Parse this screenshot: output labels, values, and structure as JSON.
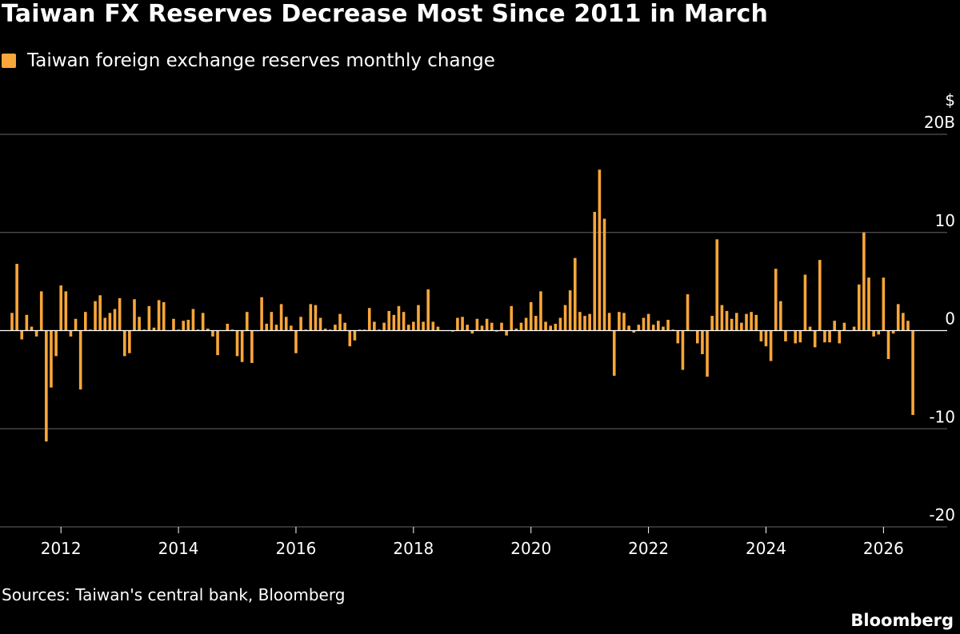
{
  "title": "Taiwan FX Reserves Decrease Most Since 2011 in March",
  "legend": {
    "label": "Taiwan foreign exchange reserves monthly change",
    "color": "#F9A63A"
  },
  "source": "Sources: Taiwan's central bank, Bloomberg",
  "brand": "Bloomberg",
  "colors": {
    "background": "#000000",
    "bar": "#F9A63A",
    "grid": "#666666",
    "zero": "#ffffff",
    "text": "#ffffff"
  },
  "chart_data": {
    "type": "bar",
    "title": "Taiwan FX Reserves Decrease Most Since 2011 in March",
    "series": [
      {
        "name": "Taiwan foreign exchange reserves monthly change",
        "color": "#F9A63A"
      }
    ],
    "unit": "$ B",
    "y_unit_label": "$",
    "start_year": 2011,
    "start_month": 3,
    "values": [
      1.8,
      6.8,
      -0.9,
      1.6,
      0.4,
      -0.6,
      4.0,
      -11.3,
      -5.8,
      -2.6,
      4.6,
      4.0,
      -0.6,
      1.2,
      -6.0,
      1.9,
      0.1,
      3.0,
      3.6,
      1.3,
      1.8,
      2.2,
      3.3,
      -2.6,
      -2.3,
      3.2,
      1.4,
      0.1,
      2.5,
      0.3,
      3.1,
      2.9,
      0.0,
      1.2,
      0.1,
      1.0,
      1.1,
      2.2,
      0.1,
      1.8,
      0.2,
      -0.6,
      -2.5,
      0.0,
      0.7,
      0.1,
      -2.6,
      -3.2,
      1.9,
      -3.3,
      0.0,
      3.4,
      0.7,
      1.9,
      0.6,
      2.7,
      1.4,
      0.5,
      -2.3,
      1.4,
      0.1,
      2.7,
      2.6,
      1.3,
      0.2,
      0.1,
      0.6,
      1.7,
      0.8,
      -1.6,
      -1.0,
      0.1,
      0.1,
      2.3,
      0.9,
      0.1,
      0.8,
      2.0,
      1.6,
      2.5,
      1.9,
      0.6,
      0.9,
      2.6,
      0.9,
      4.2,
      0.9,
      0.4,
      0.0,
      0.0,
      -0.1,
      1.3,
      1.4,
      0.6,
      -0.3,
      1.2,
      0.5,
      1.2,
      0.8,
      -0.1,
      0.8,
      -0.5,
      2.5,
      0.2,
      0.8,
      1.3,
      2.9,
      1.5,
      4.0,
      0.9,
      0.5,
      0.7,
      1.3,
      2.6,
      4.1,
      7.4,
      1.9,
      1.5,
      1.7,
      12.1,
      16.4,
      11.4,
      1.8,
      -4.6,
      1.9,
      1.8,
      0.5,
      -0.2,
      0.6,
      1.3,
      1.7,
      0.6,
      1.0,
      0.4,
      1.1,
      0.1,
      -1.3,
      -4.0,
      3.7,
      0.0,
      -1.3,
      -2.4,
      -4.7,
      1.5,
      9.3,
      2.6,
      2.0,
      1.2,
      1.8,
      0.8,
      1.7,
      1.9,
      1.6,
      -1.1,
      -1.6,
      -3.1,
      6.3,
      3.0,
      -1.1,
      0.0,
      -1.3,
      -1.2,
      5.7,
      0.4,
      -1.7,
      7.2,
      -1.2,
      -1.2,
      1.0,
      -1.3,
      0.8,
      0.0,
      0.4,
      4.7,
      10.0,
      5.4,
      -0.6,
      -0.4,
      5.4,
      -2.9,
      -0.3,
      2.7,
      1.8,
      1.0,
      -8.6
    ],
    "y_ticks": [
      20,
      10,
      0,
      -10,
      -20
    ],
    "y_tick_labels": [
      "20B",
      "10",
      "0",
      "-10",
      "-20"
    ],
    "ylim": [
      -20,
      20
    ],
    "x_ticks": [
      2012,
      2014,
      2016,
      2018,
      2020,
      2022,
      2024,
      2026
    ],
    "xlabel": "",
    "ylabel": "$",
    "grid": true
  }
}
